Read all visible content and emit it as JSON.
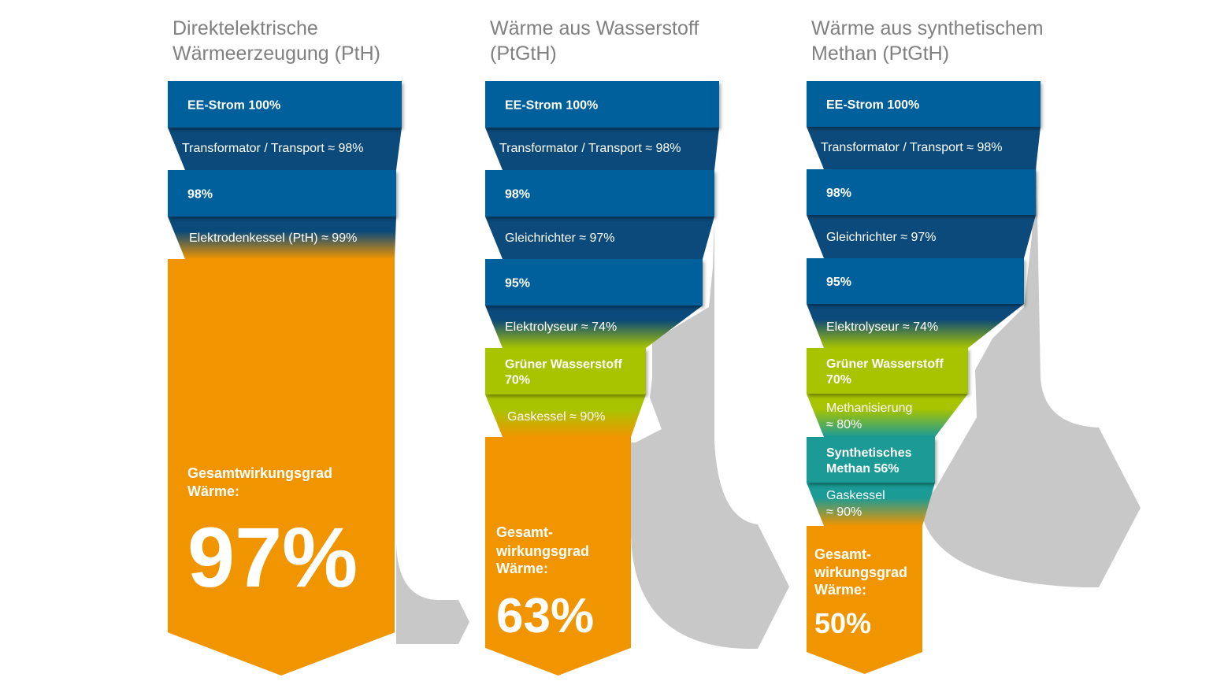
{
  "colors": {
    "blue": "#00609c",
    "dark_blue": "#0b4a7a",
    "green": "#a8c400",
    "teal": "#1a9b96",
    "orange": "#f09500",
    "loss_gray": "#c8c8c8",
    "title_gray": "#808080"
  },
  "columns": [
    {
      "title": [
        "Direktelektrische",
        "Wärmeerzeugung (PtH)"
      ],
      "boxes": [
        {
          "lines": [
            "EE-Strom 100%"
          ],
          "value": 100,
          "color": "blue"
        },
        {
          "lines": [
            "98%"
          ],
          "value": 98,
          "color": "blue"
        }
      ],
      "steps": [
        {
          "lines": [
            "Transformator / Transport ≈ 98%"
          ],
          "efficiency": 98
        },
        {
          "lines": [
            "Elektrodenkessel (PtH)  ≈ 99%"
          ],
          "efficiency": 99
        }
      ],
      "total": {
        "label": [
          "Gesamtwirkungsgrad",
          "Wärme:"
        ],
        "value": "97%"
      }
    },
    {
      "title": [
        "Wärme aus Wasserstoff",
        "(PtGtH)"
      ],
      "boxes": [
        {
          "lines": [
            "EE-Strom 100%"
          ],
          "value": 100,
          "color": "blue"
        },
        {
          "lines": [
            "98%"
          ],
          "value": 98,
          "color": "blue"
        },
        {
          "lines": [
            "95%"
          ],
          "value": 95,
          "color": "blue"
        },
        {
          "lines": [
            "Grüner Wasserstoff",
            "70%"
          ],
          "value": 70,
          "color": "green"
        }
      ],
      "steps": [
        {
          "lines": [
            "Transformator / Transport ≈ 98%"
          ],
          "efficiency": 98
        },
        {
          "lines": [
            "Gleichrichter  ≈ 97%"
          ],
          "efficiency": 97
        },
        {
          "lines": [
            "Elektrolyseur  ≈ 74%"
          ],
          "efficiency": 74
        },
        {
          "lines": [
            "Gaskessel ≈ 90%"
          ],
          "efficiency": 90
        }
      ],
      "total": {
        "label": [
          "Gesamt-",
          "wirkungsgrad",
          "Wärme:"
        ],
        "value": "63%"
      }
    },
    {
      "title": [
        "Wärme aus synthetischem",
        "Methan (PtGtH)"
      ],
      "boxes": [
        {
          "lines": [
            "EE-Strom 100%"
          ],
          "value": 100,
          "color": "blue"
        },
        {
          "lines": [
            "98%"
          ],
          "value": 98,
          "color": "blue"
        },
        {
          "lines": [
            "95%"
          ],
          "value": 95,
          "color": "blue"
        },
        {
          "lines": [
            "Grüner Wasserstoff",
            "70%"
          ],
          "value": 70,
          "color": "green"
        },
        {
          "lines": [
            "Synthetisches",
            "Methan 56%"
          ],
          "value": 56,
          "color": "teal"
        }
      ],
      "steps": [
        {
          "lines": [
            "Transformator / Transport ≈ 98%"
          ],
          "efficiency": 98
        },
        {
          "lines": [
            "Gleichrichter  ≈ 97%"
          ],
          "efficiency": 97
        },
        {
          "lines": [
            "Elektrolyseur  ≈ 74%"
          ],
          "efficiency": 74
        },
        {
          "lines": [
            "Methanisierung",
            "≈ 80%"
          ],
          "efficiency": 80
        },
        {
          "lines": [
            "Gaskessel",
            "≈ 90%"
          ],
          "efficiency": 90
        }
      ],
      "total": {
        "label": [
          "Gesamt-",
          "wirkungsgrad",
          "Wärme:"
        ],
        "value": "50%"
      }
    }
  ]
}
